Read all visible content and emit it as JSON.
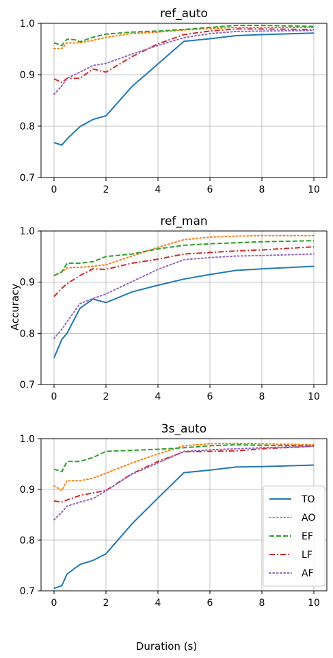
{
  "figure": {
    "ylabel": "Accuracy",
    "xlabel": "Duration (s)"
  },
  "legend": {
    "placement": "lower-right of bottom panel",
    "entries": [
      {
        "name": "TO",
        "color": "#1f77b4",
        "dash": "solid"
      },
      {
        "name": "AO",
        "color": "#ff7f0e",
        "dash": "dotted"
      },
      {
        "name": "EF",
        "color": "#2ca02c",
        "dash": "dashed"
      },
      {
        "name": "LF",
        "color": "#d62728",
        "dash": "dashdot"
      },
      {
        "name": "AF",
        "color": "#9467bd",
        "dash": "dotted"
      }
    ]
  },
  "chart_data": [
    {
      "type": "line",
      "title": "ref_auto",
      "xlim": [
        -0.5,
        10.5
      ],
      "ylim": [
        0.7,
        1.0
      ],
      "xticks": [
        0,
        2,
        4,
        6,
        8,
        10
      ],
      "yticks": [
        0.7,
        0.8,
        0.9,
        1.0
      ],
      "grid": true,
      "series": [
        {
          "name": "TO",
          "x": [
            0,
            0.3,
            0.5,
            1,
            1.5,
            2,
            3,
            4,
            5,
            6,
            7,
            8,
            10
          ],
          "values": [
            0.768,
            0.763,
            0.775,
            0.799,
            0.813,
            0.82,
            0.877,
            0.921,
            0.965,
            0.97,
            0.976,
            0.978,
            0.981
          ]
        },
        {
          "name": "AO",
          "x": [
            0,
            0.3,
            0.5,
            1,
            1.5,
            2,
            3,
            4,
            5,
            6,
            7,
            8,
            10
          ],
          "values": [
            0.951,
            0.951,
            0.962,
            0.962,
            0.967,
            0.973,
            0.98,
            0.983,
            0.987,
            0.99,
            0.992,
            0.992,
            0.992
          ]
        },
        {
          "name": "EF",
          "x": [
            0,
            0.3,
            0.5,
            0.8,
            1,
            1.5,
            2,
            3,
            4,
            5,
            6,
            7,
            8,
            10
          ],
          "values": [
            0.962,
            0.957,
            0.969,
            0.968,
            0.964,
            0.973,
            0.979,
            0.983,
            0.985,
            0.988,
            0.992,
            0.996,
            0.996,
            0.994
          ]
        },
        {
          "name": "LF",
          "x": [
            0,
            0.3,
            0.5,
            1,
            1.5,
            2,
            3,
            4,
            5,
            6,
            7,
            8,
            10
          ],
          "values": [
            0.892,
            0.885,
            0.893,
            0.893,
            0.911,
            0.905,
            0.935,
            0.96,
            0.978,
            0.985,
            0.989,
            0.989,
            0.988
          ]
        },
        {
          "name": "AF",
          "x": [
            0,
            0.3,
            0.5,
            1,
            1.5,
            2,
            3,
            4,
            5,
            6,
            7,
            8,
            10
          ],
          "values": [
            0.862,
            0.878,
            0.893,
            0.905,
            0.918,
            0.922,
            0.94,
            0.957,
            0.972,
            0.98,
            0.984,
            0.985,
            0.986
          ]
        }
      ]
    },
    {
      "type": "line",
      "title": "ref_man",
      "xlim": [
        -0.5,
        10.5
      ],
      "ylim": [
        0.7,
        1.0
      ],
      "xticks": [
        0,
        2,
        4,
        6,
        8,
        10
      ],
      "yticks": [
        0.7,
        0.8,
        0.9,
        1.0
      ],
      "grid": true,
      "series": [
        {
          "name": "TO",
          "x": [
            0,
            0.3,
            0.5,
            1,
            1.5,
            2,
            3,
            4,
            5,
            6,
            7,
            8,
            10
          ],
          "values": [
            0.752,
            0.788,
            0.8,
            0.849,
            0.867,
            0.86,
            0.881,
            0.894,
            0.906,
            0.915,
            0.923,
            0.926,
            0.931
          ]
        },
        {
          "name": "AO",
          "x": [
            0,
            0.3,
            0.5,
            1,
            1.5,
            2,
            3,
            4,
            5,
            6,
            7,
            8,
            10
          ],
          "values": [
            0.913,
            0.92,
            0.928,
            0.929,
            0.931,
            0.934,
            0.951,
            0.968,
            0.983,
            0.988,
            0.99,
            0.991,
            0.991
          ]
        },
        {
          "name": "EF",
          "x": [
            0,
            0.3,
            0.5,
            1,
            1.5,
            2,
            3,
            4,
            5,
            6,
            7,
            8,
            10
          ],
          "values": [
            0.913,
            0.92,
            0.937,
            0.937,
            0.94,
            0.95,
            0.955,
            0.965,
            0.972,
            0.975,
            0.977,
            0.979,
            0.981
          ]
        },
        {
          "name": "LF",
          "x": [
            0,
            0.3,
            0.5,
            1,
            1.5,
            2,
            3,
            4,
            5,
            6,
            7,
            8,
            10
          ],
          "values": [
            0.872,
            0.888,
            0.897,
            0.913,
            0.926,
            0.925,
            0.937,
            0.945,
            0.955,
            0.958,
            0.961,
            0.963,
            0.969
          ]
        },
        {
          "name": "AF",
          "x": [
            0,
            0.3,
            0.5,
            1,
            1.5,
            2,
            3,
            4,
            5,
            6,
            7,
            8,
            10
          ],
          "values": [
            0.79,
            0.808,
            0.823,
            0.858,
            0.868,
            0.877,
            0.901,
            0.925,
            0.944,
            0.948,
            0.951,
            0.952,
            0.955
          ]
        }
      ]
    },
    {
      "type": "line",
      "title": "3s_auto",
      "xlim": [
        -0.5,
        10.5
      ],
      "ylim": [
        0.7,
        1.0
      ],
      "xticks": [
        0,
        2,
        4,
        6,
        8,
        10
      ],
      "yticks": [
        0.7,
        0.8,
        0.9,
        1.0
      ],
      "grid": true,
      "series": [
        {
          "name": "TO",
          "x": [
            0,
            0.3,
            0.5,
            1,
            1.5,
            2,
            3,
            4,
            5,
            6,
            7,
            8,
            10
          ],
          "values": [
            0.705,
            0.71,
            0.733,
            0.752,
            0.76,
            0.773,
            0.832,
            0.883,
            0.933,
            0.938,
            0.944,
            0.945,
            0.948
          ]
        },
        {
          "name": "AO",
          "x": [
            0,
            0.3,
            0.5,
            1,
            1.5,
            2,
            3,
            4,
            5,
            6,
            7,
            8,
            10
          ],
          "values": [
            0.907,
            0.898,
            0.917,
            0.917,
            0.922,
            0.932,
            0.952,
            0.97,
            0.986,
            0.99,
            0.991,
            0.99,
            0.988
          ]
        },
        {
          "name": "EF",
          "x": [
            0,
            0.3,
            0.5,
            1,
            1.5,
            2,
            3,
            4,
            5,
            6,
            7,
            8,
            10
          ],
          "values": [
            0.94,
            0.935,
            0.955,
            0.955,
            0.963,
            0.975,
            0.977,
            0.979,
            0.982,
            0.986,
            0.988,
            0.987,
            0.986
          ]
        },
        {
          "name": "LF",
          "x": [
            0,
            0.3,
            0.5,
            1,
            1.5,
            2,
            3,
            4,
            5,
            6,
            7,
            8,
            10
          ],
          "values": [
            0.877,
            0.875,
            0.879,
            0.888,
            0.893,
            0.898,
            0.931,
            0.955,
            0.974,
            0.975,
            0.976,
            0.98,
            0.985
          ]
        },
        {
          "name": "AF",
          "x": [
            0,
            0.3,
            0.5,
            1,
            1.5,
            2,
            3,
            4,
            5,
            6,
            7,
            8,
            10
          ],
          "values": [
            0.84,
            0.855,
            0.867,
            0.875,
            0.882,
            0.897,
            0.93,
            0.952,
            0.975,
            0.978,
            0.98,
            0.982,
            0.985
          ]
        }
      ]
    }
  ]
}
